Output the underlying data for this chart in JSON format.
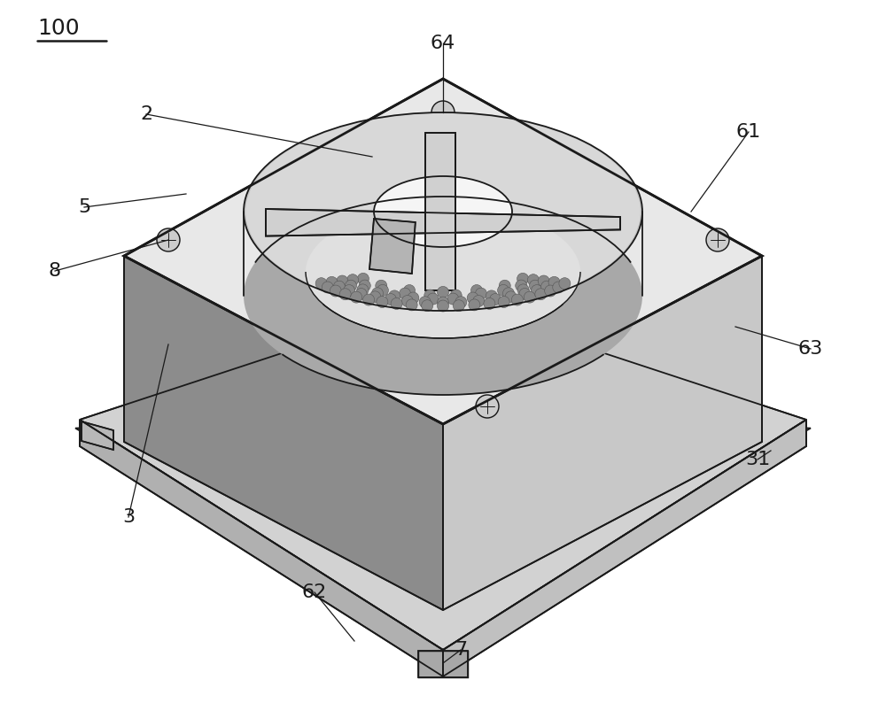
{
  "bg_color": "#ffffff",
  "lc": "#1a1a1a",
  "lw": 1.3,
  "tlw": 2.0,
  "top_face_color": "#e8e8e8",
  "left_face_color": "#8c8c8c",
  "right_face_color": "#c8c8c8",
  "front_face_color": "#b0b0b0",
  "base_top_color": "#d2d2d2",
  "base_left_color": "#b0b0b0",
  "base_right_color": "#c0c0c0",
  "torus_wall_color": "#b0b0b0",
  "torus_rim_color": "#c0c0c0",
  "torus_floor_color": "#e0e0e0",
  "torus_inner_color": "#f5f5f5",
  "torus_back_color": "#a8a8a8",
  "bar_color": "#d0d0d0",
  "screw_color": "#cccccc",
  "dot_color": "#888888",
  "label_fontsize": 16
}
